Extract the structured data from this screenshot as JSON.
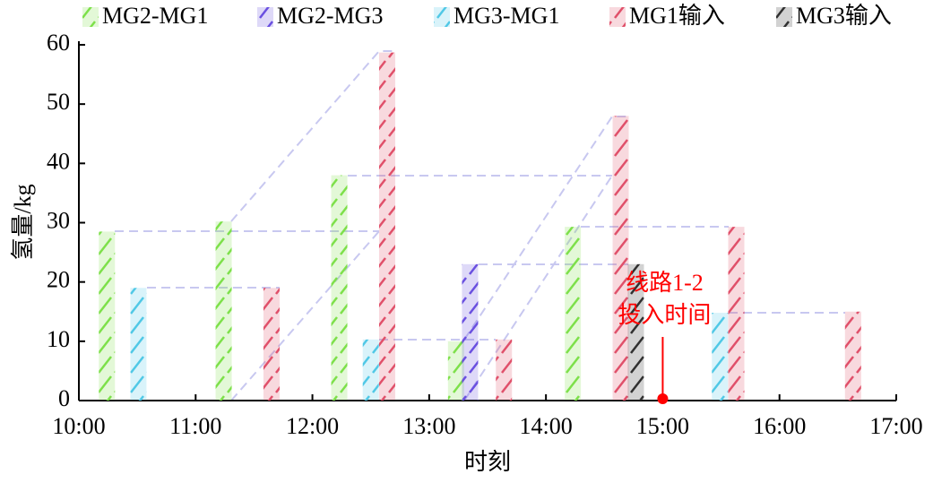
{
  "chart_data": {
    "type": "bar",
    "ylabel": "氢量/kg",
    "xlabel": "时刻",
    "xlim": [
      10,
      17
    ],
    "xticks": [
      {
        "value": 10,
        "label": "10:00"
      },
      {
        "value": 11,
        "label": "11:00"
      },
      {
        "value": 12,
        "label": "12:00"
      },
      {
        "value": 13,
        "label": "13:00"
      },
      {
        "value": 14,
        "label": "14:00"
      },
      {
        "value": 15,
        "label": "15:00"
      },
      {
        "value": 16,
        "label": "16:00"
      },
      {
        "value": 17,
        "label": "17:00"
      }
    ],
    "ylim": [
      0,
      60
    ],
    "yticks": [
      0,
      10,
      20,
      30,
      40,
      50,
      60
    ],
    "series": [
      {
        "name": "MG2-MG1",
        "color": "#7de04a",
        "x": [
          10.24,
          11.24,
          12.23,
          13.23,
          14.23
        ],
        "values": [
          28.5,
          30.2,
          38,
          10,
          29.3
        ]
      },
      {
        "name": "MG2-MG3",
        "color": "#6a50e0",
        "x": [
          13.35
        ],
        "values": [
          23
        ]
      },
      {
        "name": "MG3-MG1",
        "color": "#50c8e6",
        "x": [
          10.51,
          12.5,
          15.49
        ],
        "values": [
          19,
          10.3,
          14.8
        ]
      },
      {
        "name": "MG1输入",
        "color": "#e0506a",
        "x": [
          11.65,
          12.64,
          13.64,
          14.64,
          15.63,
          16.63
        ],
        "values": [
          19,
          58.7,
          10.3,
          48,
          29.3,
          15
        ]
      },
      {
        "name": "MG3输入",
        "color": "#303030",
        "x": [
          14.77
        ],
        "values": [
          23
        ]
      }
    ],
    "annotation": {
      "lines": [
        "线路1-2",
        "投入时间"
      ],
      "x": 15,
      "color": "#ff0000"
    }
  }
}
